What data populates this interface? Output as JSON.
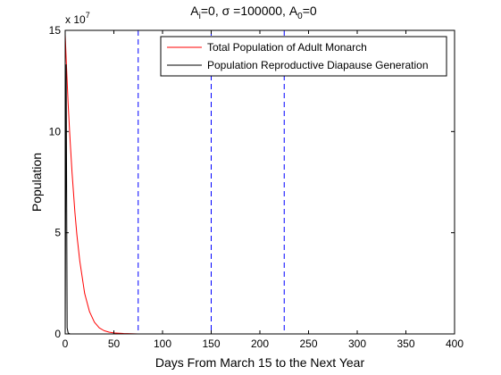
{
  "chart_data": {
    "type": "line",
    "title": {
      "a": "A",
      "a_sub": "i",
      "a_val": "=0, ",
      "sigma": "σ",
      "sigma_val": " =100000, ",
      "a0": "A",
      "a0_sub": "0",
      "a0_val": "=0"
    },
    "xlabel": "Days From March 15 to the Next Year",
    "ylabel": "Population",
    "y_multiplier": {
      "base": "x 10",
      "exp": "7"
    },
    "xlim": [
      0,
      400
    ],
    "ylim": [
      0,
      15
    ],
    "x_ticks": [
      0,
      50,
      100,
      150,
      200,
      250,
      300,
      350,
      400
    ],
    "y_ticks": [
      0,
      5,
      10,
      15
    ],
    "grid": false,
    "legend_position": "top-right",
    "series": [
      {
        "name": "Total Population of Adult Monarch",
        "color": "#ff0000",
        "x": [
          0,
          1,
          2,
          3,
          5,
          7,
          10,
          12,
          15,
          20,
          25,
          30,
          35,
          40,
          45,
          50,
          60,
          75
        ],
        "y": [
          14.8,
          13.6,
          12.5,
          11.4,
          9.6,
          8.0,
          6.0,
          4.9,
          3.6,
          2.0,
          1.1,
          0.58,
          0.3,
          0.16,
          0.09,
          0.05,
          0.02,
          0.0
        ]
      },
      {
        "name": "Population Reproductive Diapause Generation",
        "color": "#000000",
        "x": [
          0,
          1,
          2,
          3,
          4,
          5,
          8,
          12,
          20,
          40,
          60,
          75
        ],
        "y": [
          0,
          13.3,
          0.3,
          0.05,
          0.02,
          0.0,
          0.0,
          0.0,
          0.0,
          0.0,
          0.0,
          0.0
        ]
      }
    ],
    "vlines": {
      "x": [
        75,
        150,
        225
      ],
      "color": "#0000ff",
      "style": "dashed"
    }
  }
}
